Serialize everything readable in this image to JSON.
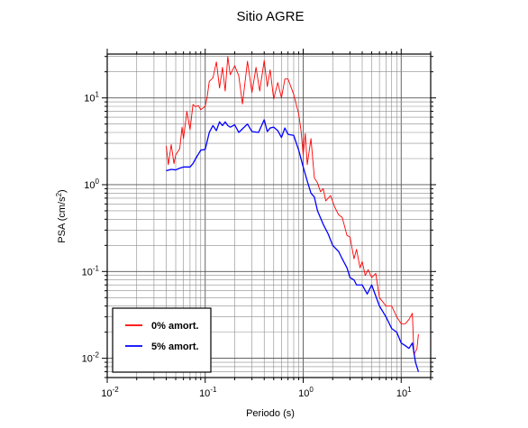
{
  "chart_data": {
    "type": "line",
    "title": "Sitio AGRE",
    "xlabel": "Periodo (s)",
    "ylabel": "PSA (cm/s",
    "ylabel_sup": "2",
    "ylabel_close": ")",
    "x_scale": "log",
    "y_scale": "log",
    "xlim": [
      0.01,
      20
    ],
    "ylim": [
      0.006,
      32
    ],
    "x_ticks": [
      {
        "value": 0.01,
        "base": "10",
        "exp": "-2"
      },
      {
        "value": 0.1,
        "base": "10",
        "exp": "-1"
      },
      {
        "value": 1,
        "base": "10",
        "exp": "0"
      },
      {
        "value": 10,
        "base": "10",
        "exp": "1"
      }
    ],
    "y_ticks": [
      {
        "value": 0.01,
        "base": "10",
        "exp": "-2"
      },
      {
        "value": 0.1,
        "base": "10",
        "exp": "-1"
      },
      {
        "value": 1,
        "base": "10",
        "exp": "0"
      },
      {
        "value": 10,
        "base": "10",
        "exp": "1"
      }
    ],
    "grid": true,
    "legend_position": "bottom-left",
    "series": [
      {
        "name": "0% amort.",
        "color": "#ff0000",
        "points": [
          [
            0.04,
            2.8
          ],
          [
            0.042,
            1.7
          ],
          [
            0.045,
            2.9
          ],
          [
            0.048,
            1.75
          ],
          [
            0.05,
            2.2
          ],
          [
            0.055,
            2.6
          ],
          [
            0.058,
            4.6
          ],
          [
            0.06,
            3.4
          ],
          [
            0.065,
            7.0
          ],
          [
            0.07,
            4.3
          ],
          [
            0.075,
            8.4
          ],
          [
            0.08,
            7.9
          ],
          [
            0.085,
            8.2
          ],
          [
            0.09,
            7.3
          ],
          [
            0.1,
            8.0
          ],
          [
            0.105,
            10.5
          ],
          [
            0.11,
            15.5
          ],
          [
            0.12,
            17.0
          ],
          [
            0.13,
            26.0
          ],
          [
            0.14,
            13.0
          ],
          [
            0.15,
            22.5
          ],
          [
            0.16,
            12.0
          ],
          [
            0.17,
            30.0
          ],
          [
            0.18,
            18.5
          ],
          [
            0.2,
            23.5
          ],
          [
            0.22,
            18.0
          ],
          [
            0.24,
            8.5
          ],
          [
            0.27,
            26.5
          ],
          [
            0.3,
            11.5
          ],
          [
            0.33,
            22.5
          ],
          [
            0.36,
            12.0
          ],
          [
            0.4,
            27.0
          ],
          [
            0.43,
            13.5
          ],
          [
            0.46,
            21.0
          ],
          [
            0.5,
            9.7
          ],
          [
            0.55,
            15.0
          ],
          [
            0.6,
            10.0
          ],
          [
            0.65,
            16.5
          ],
          [
            0.7,
            16.5
          ],
          [
            0.8,
            11.0
          ],
          [
            0.9,
            6.5
          ],
          [
            0.95,
            4.2
          ],
          [
            1.0,
            2.2
          ],
          [
            1.05,
            3.9
          ],
          [
            1.1,
            1.7
          ],
          [
            1.2,
            3.4
          ],
          [
            1.3,
            1.2
          ],
          [
            1.4,
            1.05
          ],
          [
            1.5,
            0.83
          ],
          [
            1.6,
            0.9
          ],
          [
            1.7,
            0.65
          ],
          [
            1.9,
            0.75
          ],
          [
            2.1,
            0.55
          ],
          [
            2.3,
            0.45
          ],
          [
            2.5,
            0.42
          ],
          [
            2.8,
            0.26
          ],
          [
            3.0,
            0.25
          ],
          [
            3.3,
            0.14
          ],
          [
            3.5,
            0.18
          ],
          [
            3.8,
            0.11
          ],
          [
            4.0,
            0.13
          ],
          [
            4.3,
            0.09
          ],
          [
            4.6,
            0.105
          ],
          [
            5.0,
            0.085
          ],
          [
            5.5,
            0.095
          ],
          [
            6.0,
            0.05
          ],
          [
            7.0,
            0.04
          ],
          [
            8.0,
            0.04
          ],
          [
            9.0,
            0.03
          ],
          [
            10.0,
            0.025
          ],
          [
            11.0,
            0.025
          ],
          [
            12.0,
            0.028
          ],
          [
            13.0,
            0.033
          ],
          [
            13.5,
            0.011
          ],
          [
            14.5,
            0.013
          ],
          [
            15.0,
            0.019
          ]
        ]
      },
      {
        "name": "5% amort.",
        "color": "#0000ff",
        "points": [
          [
            0.04,
            1.45
          ],
          [
            0.045,
            1.5
          ],
          [
            0.05,
            1.48
          ],
          [
            0.055,
            1.55
          ],
          [
            0.06,
            1.6
          ],
          [
            0.07,
            1.6
          ],
          [
            0.075,
            1.75
          ],
          [
            0.08,
            2.0
          ],
          [
            0.09,
            2.5
          ],
          [
            0.1,
            2.55
          ],
          [
            0.11,
            4.0
          ],
          [
            0.12,
            4.8
          ],
          [
            0.13,
            4.2
          ],
          [
            0.14,
            5.3
          ],
          [
            0.15,
            4.8
          ],
          [
            0.16,
            5.3
          ],
          [
            0.17,
            4.8
          ],
          [
            0.18,
            4.6
          ],
          [
            0.2,
            4.9
          ],
          [
            0.22,
            4.0
          ],
          [
            0.24,
            4.4
          ],
          [
            0.27,
            5.0
          ],
          [
            0.3,
            4.1
          ],
          [
            0.35,
            4.0
          ],
          [
            0.4,
            5.6
          ],
          [
            0.43,
            4.1
          ],
          [
            0.46,
            4.5
          ],
          [
            0.5,
            4.6
          ],
          [
            0.55,
            4.2
          ],
          [
            0.6,
            3.5
          ],
          [
            0.65,
            4.5
          ],
          [
            0.7,
            3.8
          ],
          [
            0.8,
            3.7
          ],
          [
            0.9,
            2.5
          ],
          [
            1.0,
            1.6
          ],
          [
            1.1,
            1.1
          ],
          [
            1.2,
            0.8
          ],
          [
            1.3,
            0.72
          ],
          [
            1.4,
            0.5
          ],
          [
            1.6,
            0.35
          ],
          [
            1.8,
            0.27
          ],
          [
            2.0,
            0.2
          ],
          [
            2.3,
            0.17
          ],
          [
            2.5,
            0.14
          ],
          [
            2.8,
            0.11
          ],
          [
            3.0,
            0.085
          ],
          [
            3.3,
            0.08
          ],
          [
            3.5,
            0.07
          ],
          [
            4.0,
            0.07
          ],
          [
            4.5,
            0.055
          ],
          [
            5.0,
            0.07
          ],
          [
            6.0,
            0.04
          ],
          [
            7.0,
            0.03
          ],
          [
            8.0,
            0.022
          ],
          [
            9.0,
            0.02
          ],
          [
            10.0,
            0.015
          ],
          [
            11.0,
            0.014
          ],
          [
            12.0,
            0.013
          ],
          [
            13.0,
            0.015
          ],
          [
            14.0,
            0.009
          ],
          [
            15.0,
            0.007
          ]
        ]
      }
    ]
  }
}
